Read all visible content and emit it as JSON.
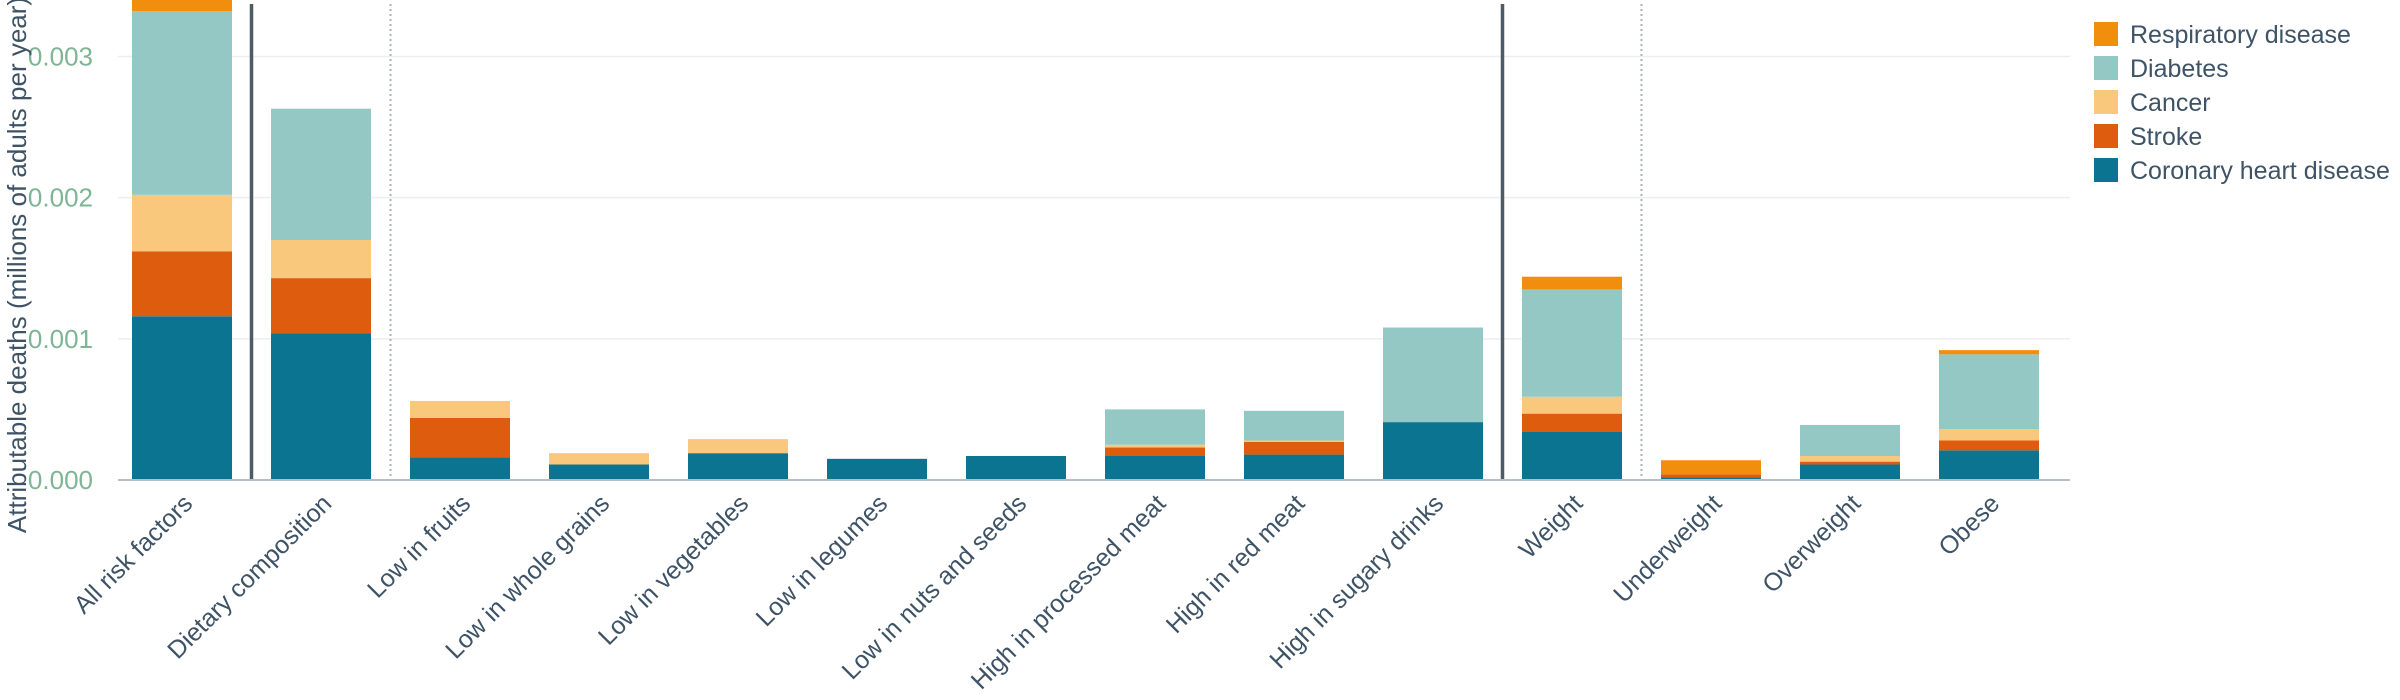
{
  "chart_data": {
    "type": "bar",
    "stacked": true,
    "title": "",
    "xlabel": "",
    "ylabel": "Attributable deaths (millions of adults per year)",
    "ylim": [
      0,
      0.0034
    ],
    "yticks": [
      "0.000",
      "0.001",
      "0.002",
      "0.003"
    ],
    "ytick_values": [
      0,
      0.001,
      0.002,
      0.003
    ],
    "grid": true,
    "legend_position": "top-right",
    "categories": [
      "All risk factors",
      "Dietary composition",
      "Low in fruits",
      "Low in whole grains",
      "Low in vegetables",
      "Low in legumes",
      "Low in nuts and seeds",
      "High in processed meat",
      "High in red meat",
      "High in sugary drinks",
      "Weight",
      "Underweight",
      "Overweight",
      "Obese"
    ],
    "group_separators": [
      {
        "after_index": 0,
        "style": "solid"
      },
      {
        "after_index": 1,
        "style": "dotted"
      },
      {
        "after_index": 9,
        "style": "solid"
      },
      {
        "after_index": 10,
        "style": "dotted"
      }
    ],
    "series": [
      {
        "name": "Coronary heart disease",
        "color": "#0a7491",
        "values": [
          0.00116,
          0.00104,
          0.00016,
          0.00011,
          0.00019,
          0.00015,
          0.00017,
          0.00017,
          0.00018,
          0.00041,
          0.00034,
          2e-05,
          0.00011,
          0.00021
        ]
      },
      {
        "name": "Stroke",
        "color": "#de5c0e",
        "values": [
          0.00046,
          0.00039,
          0.00028,
          0.0,
          0.0,
          0.0,
          0.0,
          6e-05,
          9e-05,
          0.0,
          0.00013,
          2e-05,
          2e-05,
          7e-05
        ]
      },
      {
        "name": "Cancer",
        "color": "#fac87c",
        "values": [
          0.0004,
          0.00027,
          0.00012,
          8e-05,
          0.0001,
          0.0,
          0.0,
          2e-05,
          1e-05,
          0.0,
          0.00012,
          0.0,
          4e-05,
          8e-05
        ]
      },
      {
        "name": "Diabetes",
        "color": "#93c8c5",
        "values": [
          0.0013,
          0.00093,
          0.0,
          0.0,
          0.0,
          0.0,
          0.0,
          0.00025,
          0.00021,
          0.00067,
          0.00076,
          0.0,
          0.00022,
          0.00053
        ]
      },
      {
        "name": "Respiratory disease",
        "color": "#f28e0e",
        "values": [
          0.0001,
          0.0,
          0.0,
          0.0,
          0.0,
          0.0,
          0.0,
          0.0,
          0.0,
          0.0,
          9e-05,
          0.0001,
          0.0,
          3e-05
        ]
      }
    ],
    "colors": {
      "tick_text": "#7eb595",
      "category_text": "#3e5366",
      "axis_title": "#3e5366",
      "grid": "#eceef0",
      "axis_line": "#b8bec4",
      "separator_solid": "#4d5b66",
      "separator_dotted": "#aab2bb"
    }
  }
}
